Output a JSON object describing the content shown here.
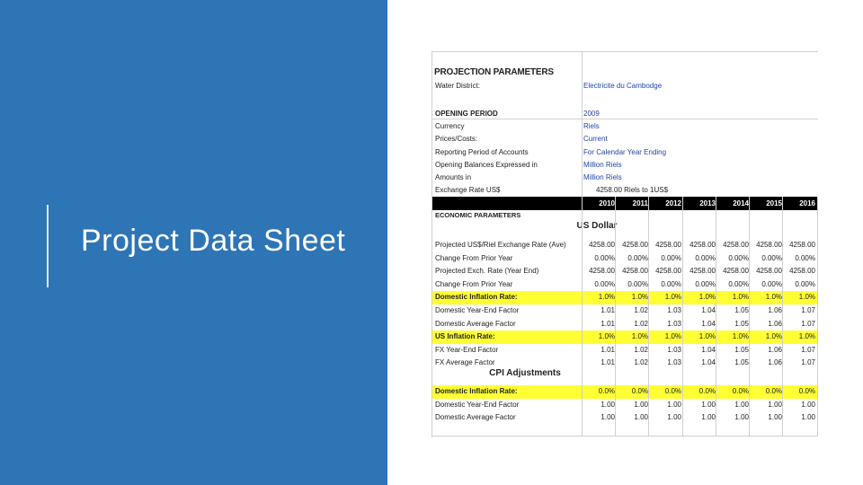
{
  "slide": {
    "title": "Project Data Sheet",
    "left_panel_color": "#2e75b6"
  },
  "sheet": {
    "title": "PROJECTION PARAMETERS",
    "params": [
      {
        "label": "Water District:",
        "value": "Electricite du Cambodge"
      },
      {
        "label": "OPENING PERIOD",
        "value": "2009"
      },
      {
        "label": "Currency",
        "value": "Riels"
      },
      {
        "label": "Prices/Costs:",
        "value": "Current"
      },
      {
        "label": "Reporting Period of Accounts",
        "value": "For Calendar Year Ending"
      },
      {
        "label": "Opening Balances Expressed in",
        "value": "Million Riels"
      },
      {
        "label": "Amounts in",
        "value": "Million Riels"
      },
      {
        "label": "Exchange Rate US$",
        "value": "4258.00  Riels to 1US$"
      }
    ],
    "years": [
      "2010",
      "2011",
      "2012",
      "2013",
      "2014",
      "2015",
      "2016"
    ],
    "economic_label": "ECONOMIC PARAMETERS",
    "us_dollar_heading": "US Dollar",
    "us_rows": [
      {
        "label": "Projected US$/Riel Exchange Rate (Ave)",
        "values": [
          "4258.00",
          "4258.00",
          "4258.00",
          "4258.00",
          "4258.00",
          "4258.00",
          "4258.00"
        ],
        "highlight": false
      },
      {
        "label": "Change From Prior Year",
        "values": [
          "0.00%",
          "0.00%",
          "0.00%",
          "0.00%",
          "0.00%",
          "0.00%",
          "0.00%"
        ],
        "highlight": false
      },
      {
        "label": "Projected Exch. Rate (Year End)",
        "values": [
          "4258.00",
          "4258.00",
          "4258.00",
          "4258.00",
          "4258.00",
          "4258.00",
          "4258.00"
        ],
        "highlight": false
      },
      {
        "label": "Change From Prior Year",
        "values": [
          "0.00%",
          "0.00%",
          "0.00%",
          "0.00%",
          "0.00%",
          "0.00%",
          "0.00%"
        ],
        "highlight": false
      },
      {
        "label": "Domestic Inflation Rate:",
        "values": [
          "1.0%",
          "1.0%",
          "1.0%",
          "1.0%",
          "1.0%",
          "1.0%",
          "1.0%"
        ],
        "highlight": true
      },
      {
        "label": "Domestic Year-End Factor",
        "values": [
          "1.01",
          "1.02",
          "1.03",
          "1.04",
          "1.05",
          "1.06",
          "1.07"
        ],
        "highlight": false
      },
      {
        "label": "Domestic Average Factor",
        "values": [
          "1.01",
          "1.02",
          "1.03",
          "1.04",
          "1.05",
          "1.06",
          "1.07"
        ],
        "highlight": false
      },
      {
        "label": "US Inflation Rate:",
        "values": [
          "1.0%",
          "1.0%",
          "1.0%",
          "1.0%",
          "1.0%",
          "1.0%",
          "1.0%"
        ],
        "highlight": true
      },
      {
        "label": "FX Year-End Factor",
        "values": [
          "1.01",
          "1.02",
          "1.03",
          "1.04",
          "1.05",
          "1.06",
          "1.07"
        ],
        "highlight": false
      },
      {
        "label": "FX Average Factor",
        "values": [
          "1.01",
          "1.02",
          "1.03",
          "1.04",
          "1.05",
          "1.06",
          "1.07"
        ],
        "highlight": false
      }
    ],
    "cpi_heading": "CPI Adjustments",
    "cpi_rows": [
      {
        "label": "Domestic Inflation Rate:",
        "values": [
          "0.0%",
          "0.0%",
          "0.0%",
          "0.0%",
          "0.0%",
          "0.0%",
          "0.0%"
        ],
        "highlight": true
      },
      {
        "label": "Domestic Year-End Factor",
        "values": [
          "1.00",
          "1.00",
          "1.00",
          "1.00",
          "1.00",
          "1.00",
          "1.00"
        ],
        "highlight": false
      },
      {
        "label": "Domestic Average Factor",
        "values": [
          "1.00",
          "1.00",
          "1.00",
          "1.00",
          "1.00",
          "1.00",
          "1.00"
        ],
        "highlight": false
      }
    ],
    "highlight_color": "#ffff33"
  }
}
